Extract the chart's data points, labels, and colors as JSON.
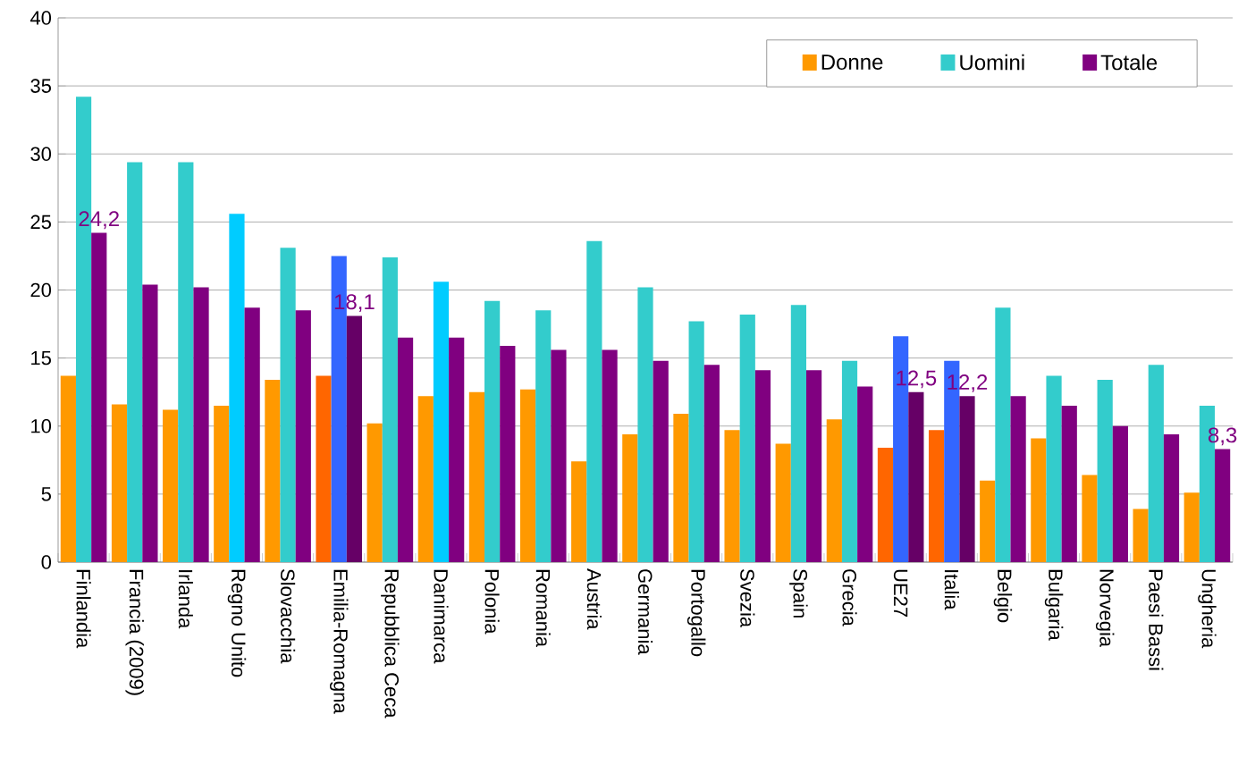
{
  "chart_data": {
    "type": "bar",
    "categories": [
      "Finlandia",
      "Francia (2009)",
      "Irlanda",
      "Regno Unito",
      "Slovacchia",
      "Emilia-Romagna",
      "Repubblica Ceca",
      "Danimarca",
      "Polonia",
      "Romania",
      "Austria",
      "Germania",
      "Portogallo",
      "Svezia",
      "Spain",
      "Grecia",
      "UE27",
      "Italia",
      "Belgio",
      "Bulgaria",
      "Norvegia",
      "Paesi Bassi",
      "Ungheria"
    ],
    "series": [
      {
        "name": "Donne",
        "color": "#ff9900",
        "colors": [
          "#ff9900",
          "#ff9900",
          "#ff9900",
          "#ff9900",
          "#ff9900",
          "#ff6600",
          "#ff9900",
          "#ff9900",
          "#ff9900",
          "#ff9900",
          "#ff9900",
          "#ff9900",
          "#ff9900",
          "#ff9900",
          "#ff9900",
          "#ff9900",
          "#ff6600",
          "#ff6600",
          "#ff9900",
          "#ff9900",
          "#ff9900",
          "#ff9900",
          "#ff9900"
        ],
        "values": [
          13.7,
          11.6,
          11.2,
          11.5,
          13.4,
          13.7,
          10.2,
          12.2,
          12.5,
          12.7,
          7.4,
          9.4,
          10.9,
          9.7,
          8.7,
          10.5,
          8.4,
          9.7,
          6.0,
          9.1,
          6.4,
          3.9,
          5.1
        ]
      },
      {
        "name": "Uomini",
        "color": "#33cccc",
        "colors": [
          "#33cccc",
          "#33cccc",
          "#33cccc",
          "#00ccff",
          "#33cccc",
          "#3366ff",
          "#33cccc",
          "#00ccff",
          "#33cccc",
          "#33cccc",
          "#33cccc",
          "#33cccc",
          "#33cccc",
          "#33cccc",
          "#33cccc",
          "#33cccc",
          "#3366ff",
          "#3366ff",
          "#33cccc",
          "#33cccc",
          "#33cccc",
          "#33cccc",
          "#33cccc"
        ],
        "values": [
          34.2,
          29.4,
          29.4,
          25.6,
          23.1,
          22.5,
          22.4,
          20.6,
          19.2,
          18.5,
          23.6,
          20.2,
          17.7,
          18.2,
          18.9,
          14.8,
          16.6,
          14.8,
          18.7,
          13.7,
          13.4,
          14.5,
          11.5
        ]
      },
      {
        "name": "Totale",
        "color": "#800080",
        "colors": [
          "#800080",
          "#800080",
          "#800080",
          "#800080",
          "#800080",
          "#660066",
          "#800080",
          "#800080",
          "#800080",
          "#800080",
          "#800080",
          "#800080",
          "#800080",
          "#800080",
          "#800080",
          "#800080",
          "#660066",
          "#660066",
          "#800080",
          "#800080",
          "#800080",
          "#800080",
          "#800080"
        ],
        "values": [
          24.2,
          20.4,
          20.2,
          18.7,
          18.5,
          18.1,
          16.5,
          16.5,
          15.9,
          15.6,
          15.6,
          14.8,
          14.5,
          14.1,
          14.1,
          12.9,
          12.5,
          12.2,
          12.2,
          11.5,
          10.0,
          9.4,
          8.3
        ],
        "value_labels": [
          "24,2",
          null,
          null,
          null,
          null,
          "18,1",
          null,
          null,
          null,
          null,
          null,
          null,
          null,
          null,
          null,
          null,
          "12,5",
          "12,2",
          null,
          null,
          null,
          null,
          "8,3"
        ]
      }
    ],
    "ylim": [
      0,
      40
    ],
    "yticks": [
      0,
      5,
      10,
      15,
      20,
      25,
      30,
      35,
      40
    ],
    "grid": "y",
    "legend": "top right"
  }
}
